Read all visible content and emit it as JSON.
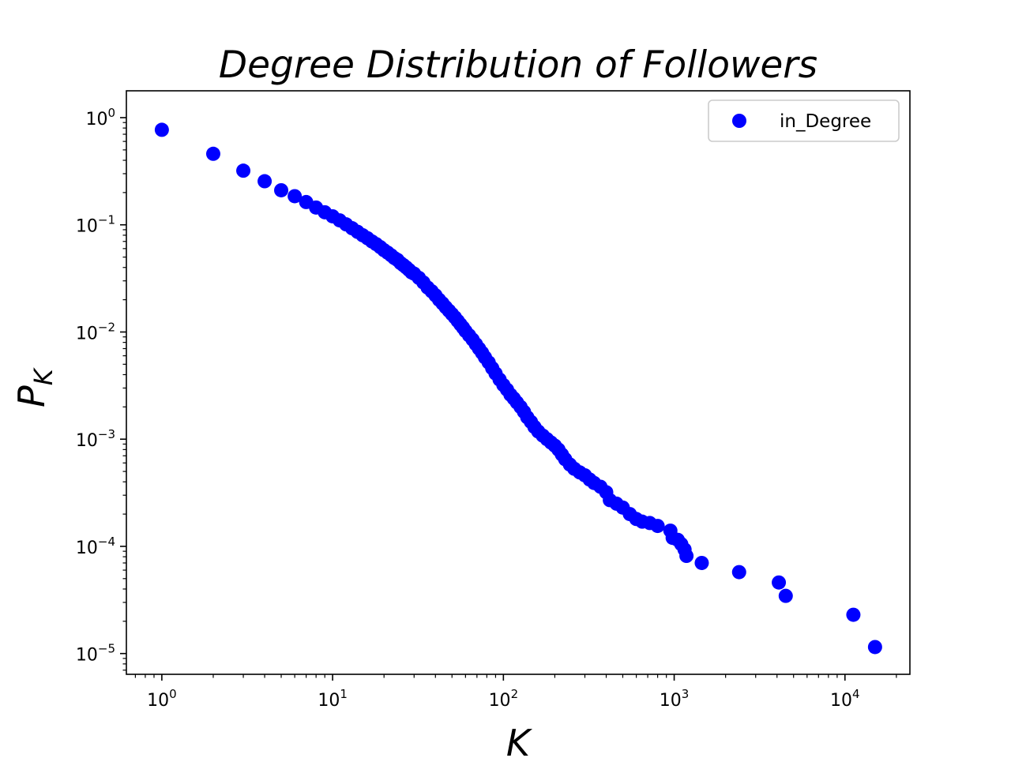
{
  "chart_data": {
    "type": "scatter",
    "title": "Degree Distribution of Followers",
    "xlabel": "K",
    "ylabel_base": "P",
    "ylabel_subscript": "K",
    "xscale": "log",
    "yscale": "log",
    "xlim": [
      0.62,
      24000
    ],
    "ylim": [
      6.4e-06,
      1.78
    ],
    "x_ticks": [
      {
        "value": 1,
        "base": "10",
        "exp": "0"
      },
      {
        "value": 10,
        "base": "10",
        "exp": "1"
      },
      {
        "value": 100,
        "base": "10",
        "exp": "2"
      },
      {
        "value": 1000,
        "base": "10",
        "exp": "3"
      },
      {
        "value": 10000,
        "base": "10",
        "exp": "4"
      }
    ],
    "y_ticks": [
      {
        "value": 1,
        "base": "10",
        "exp": "0"
      },
      {
        "value": 0.1,
        "base": "10",
        "exp": "−1"
      },
      {
        "value": 0.01,
        "base": "10",
        "exp": "−2"
      },
      {
        "value": 0.001,
        "base": "10",
        "exp": "−3"
      },
      {
        "value": 0.0001,
        "base": "10",
        "exp": "−4"
      },
      {
        "value": 1e-05,
        "base": "10",
        "exp": "−5"
      }
    ],
    "legend": {
      "placement": "top-right",
      "entries": [
        "in_Degree"
      ]
    },
    "grid": false,
    "series": [
      {
        "name": "in_Degree",
        "color": "#0000ff",
        "points": [
          [
            1,
            0.77
          ],
          [
            2,
            0.46
          ],
          [
            3,
            0.32
          ],
          [
            4,
            0.255
          ],
          [
            5,
            0.21
          ],
          [
            6,
            0.185
          ],
          [
            7,
            0.163
          ],
          [
            8,
            0.145
          ],
          [
            9,
            0.131
          ],
          [
            10,
            0.12
          ],
          [
            11,
            0.11
          ],
          [
            12,
            0.101
          ],
          [
            13,
            0.093
          ],
          [
            14,
            0.086
          ],
          [
            15,
            0.08
          ],
          [
            16,
            0.075
          ],
          [
            17,
            0.07
          ],
          [
            18,
            0.066
          ],
          [
            19,
            0.062
          ],
          [
            20,
            0.058
          ],
          [
            21,
            0.055
          ],
          [
            22,
            0.052
          ],
          [
            23,
            0.049
          ],
          [
            24,
            0.047
          ],
          [
            25,
            0.044
          ],
          [
            26,
            0.042
          ],
          [
            27,
            0.04
          ],
          [
            28,
            0.038
          ],
          [
            29,
            0.036
          ],
          [
            30,
            0.035
          ],
          [
            32,
            0.032
          ],
          [
            34,
            0.029
          ],
          [
            36,
            0.026
          ],
          [
            38,
            0.024
          ],
          [
            40,
            0.022
          ],
          [
            42,
            0.02
          ],
          [
            44,
            0.0185
          ],
          [
            46,
            0.017
          ],
          [
            48,
            0.0158
          ],
          [
            50,
            0.0147
          ],
          [
            52,
            0.0137
          ],
          [
            54,
            0.0127
          ],
          [
            56,
            0.0118
          ],
          [
            58,
            0.011
          ],
          [
            60,
            0.0102
          ],
          [
            63,
            0.0093
          ],
          [
            66,
            0.0085
          ],
          [
            69,
            0.0077
          ],
          [
            72,
            0.007
          ],
          [
            75,
            0.0064
          ],
          [
            78,
            0.0058
          ],
          [
            82,
            0.0052
          ],
          [
            86,
            0.0046
          ],
          [
            90,
            0.0041
          ],
          [
            95,
            0.0036
          ],
          [
            100,
            0.0032
          ],
          [
            105,
            0.0029
          ],
          [
            110,
            0.0026
          ],
          [
            115,
            0.0024
          ],
          [
            120,
            0.0022
          ],
          [
            126,
            0.002
          ],
          [
            132,
            0.0018
          ],
          [
            138,
            0.0016
          ],
          [
            145,
            0.00145
          ],
          [
            152,
            0.0013
          ],
          [
            160,
            0.00118
          ],
          [
            170,
            0.00108
          ],
          [
            180,
            0.001
          ],
          [
            190,
            0.00093
          ],
          [
            200,
            0.00087
          ],
          [
            210,
            0.0008
          ],
          [
            220,
            0.00072
          ],
          [
            230,
            0.00065
          ],
          [
            245,
            0.00058
          ],
          [
            260,
            0.00053
          ],
          [
            280,
            0.00049
          ],
          [
            300,
            0.00046
          ],
          [
            320,
            0.00042
          ],
          [
            340,
            0.00039
          ],
          [
            370,
            0.00036
          ],
          [
            400,
            0.00032
          ],
          [
            420,
            0.00027
          ],
          [
            460,
            0.00025
          ],
          [
            500,
            0.00023
          ],
          [
            550,
            0.0002
          ],
          [
            600,
            0.00018
          ],
          [
            650,
            0.00017
          ],
          [
            720,
            0.000165
          ],
          [
            800,
            0.000155
          ],
          [
            950,
            0.00014
          ],
          [
            980,
            0.00012
          ],
          [
            1050,
            0.000115
          ],
          [
            1100,
            0.000105
          ],
          [
            1150,
            9.35e-05
          ],
          [
            1180,
            8.15e-05
          ],
          [
            1450,
            7e-05
          ],
          [
            2400,
            5.75e-05
          ],
          [
            4100,
            4.6e-05
          ],
          [
            4500,
            3.45e-05
          ],
          [
            11200,
            2.3e-05
          ],
          [
            15000,
            1.15e-05
          ]
        ]
      }
    ]
  }
}
